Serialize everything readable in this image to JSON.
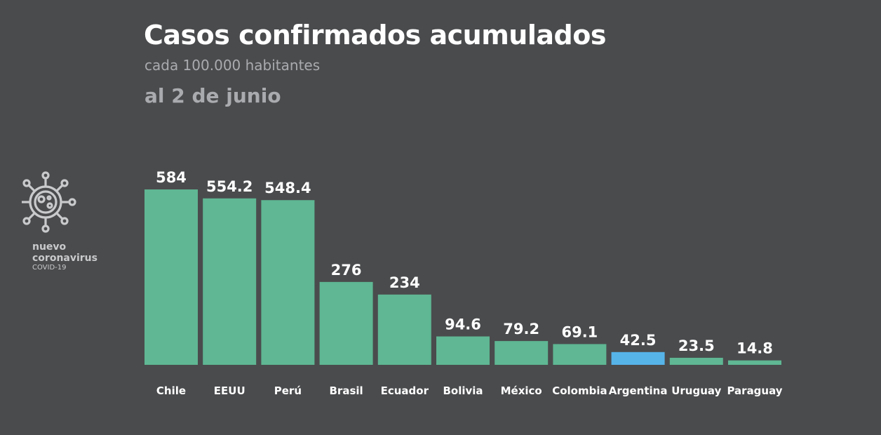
{
  "logo": {
    "line1": "nuevo",
    "line2": "coronavirus",
    "line3": "COVID-19",
    "icon": "virus-icon"
  },
  "colors": {
    "background": "#4a4b4d",
    "bar": "#5fb793",
    "highlight": "#56b4e9",
    "text": "#ffffff",
    "muted": "#a9abae"
  },
  "chart_data": {
    "type": "bar",
    "title": "Casos confirmados acumulados",
    "subtitle": "cada 100.000 habitantes",
    "date": "al 2 de junio",
    "categories": [
      "Chile",
      "EEUU",
      "Perú",
      "Brasil",
      "Ecuador",
      "Bolivia",
      "México",
      "Colombia",
      "Argentina",
      "Uruguay",
      "Paraguay"
    ],
    "values": [
      584,
      554.2,
      548.4,
      276,
      234,
      94.6,
      79.2,
      69.1,
      42.5,
      23.5,
      14.8
    ],
    "value_labels": [
      "584",
      "554.2",
      "548.4",
      "276",
      "234",
      "94.6",
      "79.2",
      "69.1",
      "42.5",
      "23.5",
      "14.8"
    ],
    "highlight": "Argentina",
    "ylim": [
      0,
      584
    ],
    "grid": false,
    "xlabel": "",
    "ylabel": ""
  }
}
